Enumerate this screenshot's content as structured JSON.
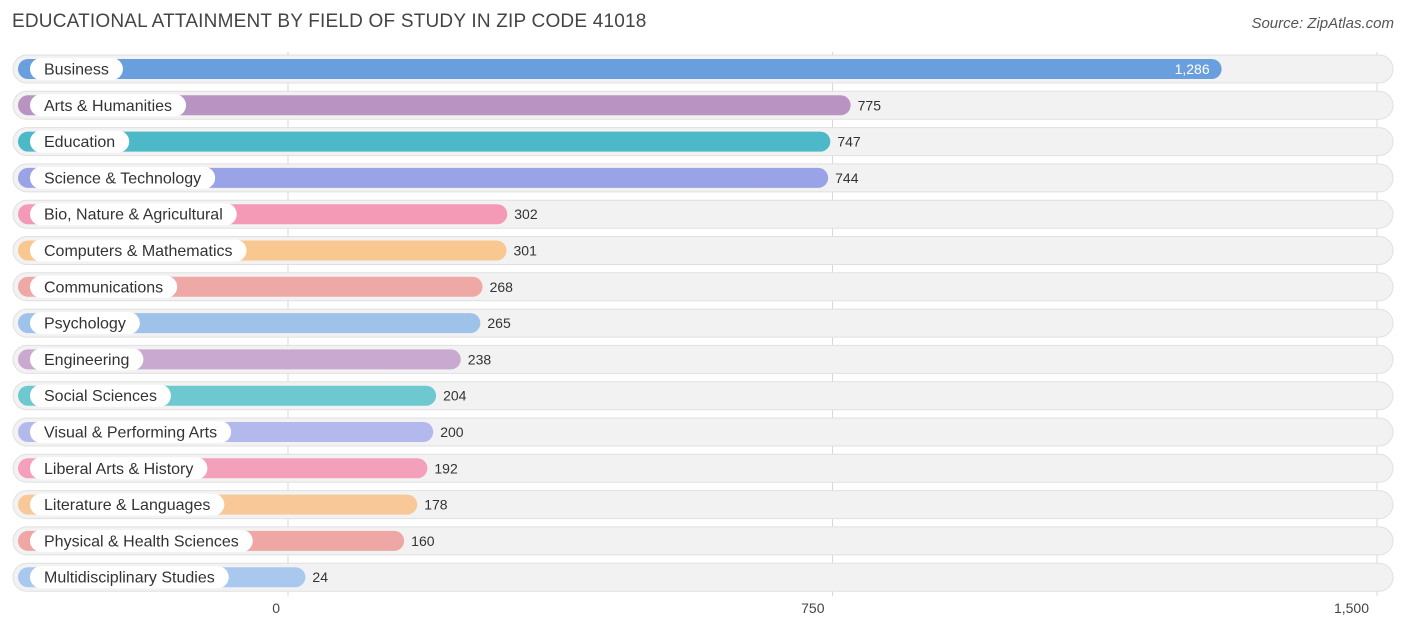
{
  "title": "EDUCATIONAL ATTAINMENT BY FIELD OF STUDY IN ZIP CODE 41018",
  "source": "Source: ZipAtlas.com",
  "chart_data": {
    "type": "bar",
    "orientation": "horizontal",
    "title": "EDUCATIONAL ATTAINMENT BY FIELD OF STUDY IN ZIP CODE 41018",
    "categories": [
      "Business",
      "Arts & Humanities",
      "Education",
      "Science & Technology",
      "Bio, Nature & Agricultural",
      "Computers & Mathematics",
      "Communications",
      "Psychology",
      "Engineering",
      "Social Sciences",
      "Visual & Performing Arts",
      "Liberal Arts & History",
      "Literature & Languages",
      "Physical & Health Sciences",
      "Multidisciplinary Studies"
    ],
    "values": [
      1286,
      775,
      747,
      744,
      302,
      301,
      268,
      265,
      238,
      204,
      200,
      192,
      178,
      160,
      24
    ],
    "value_labels": [
      "1,286",
      "775",
      "747",
      "744",
      "302",
      "301",
      "268",
      "265",
      "238",
      "204",
      "200",
      "192",
      "178",
      "160",
      "24"
    ],
    "colors": [
      "#6a9fde",
      "#b993c2",
      "#4db8c8",
      "#9aa3e6",
      "#f59ab6",
      "#f8c890",
      "#eea8a5",
      "#9fc2ea",
      "#c9a9d0",
      "#6ec8d0",
      "#b3b9ec",
      "#f5a0bb",
      "#f8c898",
      "#eea7a5",
      "#a9c8ee"
    ],
    "xlim": [
      0,
      1500
    ],
    "xticks": [
      0,
      750,
      1500
    ],
    "xtick_labels": [
      "0",
      "750",
      "1,500"
    ],
    "xlabel": "",
    "ylabel": "",
    "grid": true,
    "legend": "none"
  }
}
